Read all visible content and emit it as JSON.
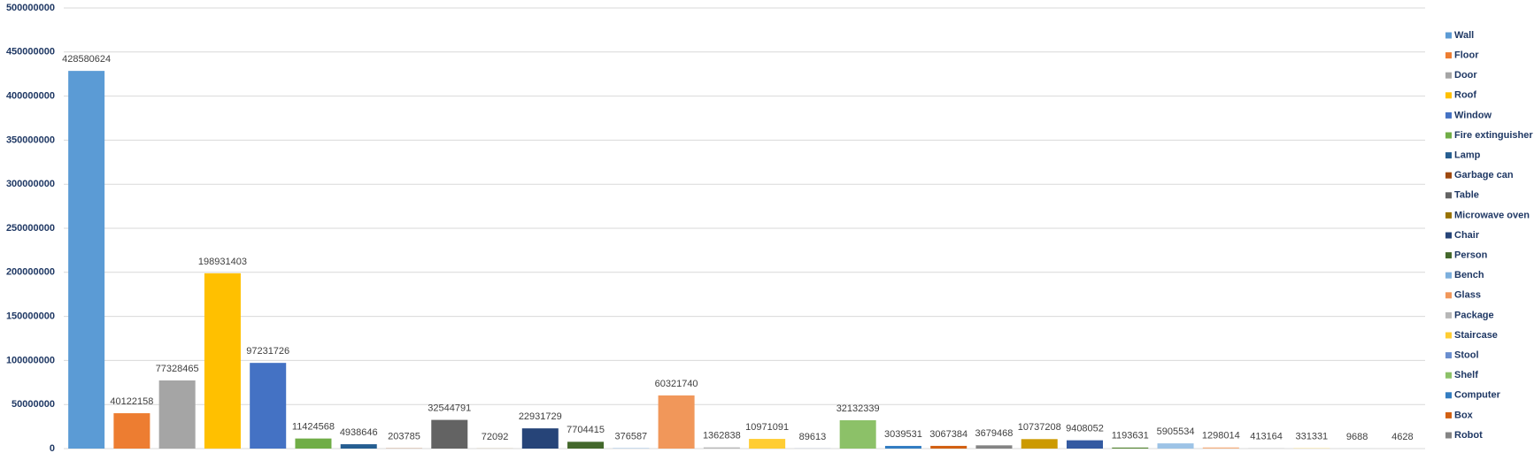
{
  "chart_data": {
    "type": "bar",
    "ylim": [
      0,
      500000000
    ],
    "yticks": [
      0,
      50000000,
      100000000,
      150000000,
      200000000,
      250000000,
      300000000,
      350000000,
      400000000,
      450000000,
      500000000
    ],
    "grid": true,
    "legend": "right",
    "series": [
      {
        "name": "Wall",
        "color": "#5b9bd5",
        "values": [
          428580624
        ]
      },
      {
        "name": "Floor",
        "color": "#ed7d31",
        "values": [
          40122158
        ]
      },
      {
        "name": "Door",
        "color": "#a5a5a5",
        "values": [
          77328465
        ]
      },
      {
        "name": "Roof",
        "color": "#ffc000",
        "values": [
          198931403
        ]
      },
      {
        "name": "Window",
        "color": "#4472c4",
        "values": [
          97231726
        ]
      },
      {
        "name": "Fire extinguisher",
        "color": "#70ad47",
        "values": [
          11424568
        ]
      },
      {
        "name": "Lamp",
        "color": "#255e91",
        "values": [
          4938646
        ]
      },
      {
        "name": "Garbage can",
        "color": "#9e480e",
        "values": [
          203785
        ]
      },
      {
        "name": "Table",
        "color": "#636363",
        "values": [
          32544791
        ]
      },
      {
        "name": "Microwave oven",
        "color": "#997300",
        "values": [
          72092
        ]
      },
      {
        "name": "Chair",
        "color": "#264478",
        "values": [
          22931729
        ]
      },
      {
        "name": "Person",
        "color": "#43682b",
        "values": [
          7704415
        ]
      },
      {
        "name": "Bench",
        "color": "#7cafdd",
        "values": [
          376587
        ]
      },
      {
        "name": "Glass",
        "color": "#f1975a",
        "values": [
          60321740
        ]
      },
      {
        "name": "Package",
        "color": "#b7b7b7",
        "values": [
          1362838
        ]
      },
      {
        "name": "Staircase",
        "color": "#ffcd33",
        "values": [
          10971091
        ]
      },
      {
        "name": "Stool",
        "color": "#698ed0",
        "values": [
          89613
        ]
      },
      {
        "name": "Shelf",
        "color": "#8cc168",
        "values": [
          32132339
        ]
      },
      {
        "name": "Computer",
        "color": "#327dc2",
        "values": [
          3039531
        ]
      },
      {
        "name": "Box",
        "color": "#d26012",
        "values": [
          3067384
        ]
      },
      {
        "name": "Robot",
        "color": "#848484",
        "values": [
          3679468
        ]
      },
      {
        "name": null,
        "color": "#cc9a00",
        "values": [
          10737208
        ]
      },
      {
        "name": null,
        "color": "#335aa1",
        "values": [
          9408052
        ]
      },
      {
        "name": null,
        "color": "#5a8a39",
        "values": [
          1193631
        ]
      },
      {
        "name": null,
        "color": "#9dc3e6",
        "values": [
          5905534
        ]
      },
      {
        "name": null,
        "color": "#f4b183",
        "values": [
          1298014
        ]
      },
      {
        "name": null,
        "color": "#c9c9c9",
        "values": [
          413164
        ]
      },
      {
        "name": null,
        "color": "#ffd966",
        "values": [
          331331
        ]
      },
      {
        "name": null,
        "color": "#8faadc",
        "values": [
          9688
        ]
      },
      {
        "name": null,
        "color": "#a9d18e",
        "values": [
          4628
        ]
      }
    ]
  }
}
